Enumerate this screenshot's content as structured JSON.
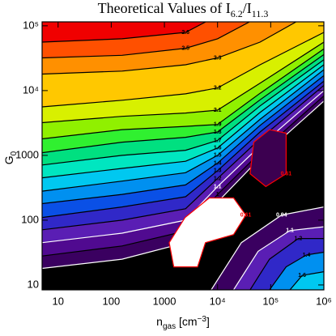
{
  "chart_data": {
    "type": "contour",
    "title": [
      "Theoretical Values of I",
      "6.2",
      "/I",
      "11.3"
    ],
    "xlabel": [
      "n",
      "gas",
      " [cm",
      "−3",
      "]"
    ],
    "ylabel": [
      "G",
      "0"
    ],
    "log_x": true,
    "log_y": true,
    "xlim": [
      5,
      1000000
    ],
    "ylim": [
      8.4,
      115000
    ],
    "xticks": [
      10,
      100,
      1000,
      {
        "value": 10000,
        "label": "10⁴"
      },
      {
        "value": 100000,
        "label": "10⁵"
      },
      {
        "value": 1000000,
        "label": "10⁶"
      }
    ],
    "yticks": [
      10,
      100,
      1000,
      {
        "value": 10000,
        "label": "10⁴"
      },
      {
        "value": 100000,
        "label": "10⁵"
      }
    ],
    "contours": [
      {
        "level": 0.94,
        "side": "upper-left",
        "fill": "#3a0060",
        "line_color": "#ffffff",
        "x": [
          5,
          160,
          2500,
          10000,
          63000,
          1000000
        ],
        "y": [
          18,
          25,
          45,
          190,
          910,
          6900
        ]
      },
      {
        "level": 1.0,
        "side": "upper-left",
        "fill": "#500a90",
        "line_color": "#000000",
        "x": [
          5,
          160,
          2500,
          10000,
          63000,
          1000000
        ],
        "y": [
          28,
          40,
          68,
          250,
          1100,
          8300
        ]
      },
      {
        "level": 1.1,
        "side": "upper-left",
        "fill": "#5a1eb4",
        "line_color": "#ffffff",
        "x": [
          5,
          160,
          2500,
          10000,
          63000,
          1000000
        ],
        "y": [
          45,
          63,
          100,
          330,
          1400,
          10000
        ]
      },
      {
        "level": 1.2,
        "side": "upper-left",
        "fill": "#3028c8",
        "line_color": "#000000",
        "x": [
          5,
          160,
          2500,
          10000,
          63000,
          1000000
        ],
        "y": [
          71,
          100,
          150,
          440,
          1800,
          12000
        ]
      },
      {
        "level": 1.3,
        "side": "upper-left",
        "fill": "#0a50e6",
        "line_color": "#000000",
        "x": [
          5,
          160,
          2500,
          10000,
          63000,
          1000000
        ],
        "y": [
          110,
          160,
          230,
          580,
          2300,
          14000
        ]
      },
      {
        "level": 1.4,
        "side": "upper-left",
        "fill": "#0090f0",
        "line_color": "#000000",
        "x": [
          5,
          160,
          2500,
          10000,
          63000,
          1000000
        ],
        "y": [
          180,
          250,
          350,
          760,
          2900,
          17000
        ]
      },
      {
        "level": 1.5,
        "side": "upper-left",
        "fill": "#00c8f0",
        "line_color": "#000000",
        "x": [
          5,
          160,
          2500,
          10000,
          63000,
          1000000
        ],
        "y": [
          280,
          400,
          540,
          1000,
          3600,
          21000
        ]
      },
      {
        "level": 1.6,
        "side": "upper-left",
        "fill": "#00e6c0",
        "line_color": "#000000",
        "x": [
          5,
          160,
          2500,
          10000,
          63000,
          1000000
        ],
        "y": [
          450,
          630,
          810,
          1300,
          4600,
          25000
        ]
      },
      {
        "level": 1.7,
        "side": "upper-left",
        "fill": "#00e080",
        "line_color": "#000000",
        "x": [
          5,
          160,
          2500,
          10000,
          63000,
          1000000
        ],
        "y": [
          710,
          1000,
          1200,
          1700,
          5800,
          30000
        ]
      },
      {
        "level": 1.8,
        "side": "upper-left",
        "fill": "#30f030",
        "line_color": "#000000",
        "x": [
          5,
          160,
          2500,
          10000,
          63000,
          1000000
        ],
        "y": [
          1100,
          1600,
          1900,
          2300,
          7200,
          36000
        ]
      },
      {
        "level": 1.9,
        "side": "upper-left",
        "fill": "#90f000",
        "line_color": "#000000",
        "x": [
          5,
          160,
          2500,
          10000,
          63000,
          1000000
        ],
        "y": [
          1800,
          2500,
          2800,
          3000,
          9100,
          44000
        ]
      },
      {
        "level": 2.1,
        "side": "upper-left",
        "fill": "#d8f000",
        "line_color": "#000000",
        "x": [
          5,
          160,
          2500,
          10000,
          63000,
          1000000
        ],
        "y": [
          3200,
          4000,
          4500,
          5000,
          13000,
          56000
        ]
      },
      {
        "level": 2.2,
        "side": "upper-left",
        "fill": "#ffc800",
        "line_color": "#000000",
        "x": [
          5,
          160,
          2500,
          10000,
          63000,
          1000000
        ],
        "y": [
          5600,
          7100,
          8900,
          11000,
          25000,
          79000
        ]
      },
      {
        "level": 2.3,
        "side": "upper-left",
        "fill": "#ff9000",
        "line_color": "#000000",
        "x": [
          5,
          160,
          2500,
          10000,
          63000,
          300000
        ],
        "y": [
          18000,
          20000,
          25000,
          32000,
          56000,
          115000
        ]
      },
      {
        "level": 2.5,
        "side": "upper-left",
        "fill": "#ff5000",
        "line_color": "#000000",
        "x": [
          5,
          160,
          2500,
          10000,
          40000
        ],
        "y": [
          32000,
          35000,
          45000,
          63000,
          115000
        ]
      },
      {
        "level": 2.6,
        "side": "upper-left",
        "fill": "#f00000",
        "line_color": "#000000",
        "x": [
          5,
          160,
          2500,
          6000
        ],
        "y": [
          56000,
          63000,
          79000,
          115000
        ]
      },
      {
        "level": 0.94,
        "side": "lower-right",
        "fill": "#3a0060",
        "line_color": "#ffffff",
        "x": [
          7600,
          28000,
          160000,
          1000000
        ],
        "y": [
          8.4,
          45,
          120,
          160
        ]
      },
      {
        "level": 1.1,
        "side": "lower-right",
        "fill": "#5a1eb4",
        "line_color": "#ffffff",
        "x": [
          20000,
          58000,
          230000,
          1000000
        ],
        "y": [
          8.4,
          33,
          69,
          79
        ]
      },
      {
        "level": 1.2,
        "side": "lower-right",
        "fill": "#3028c8",
        "line_color": "#000000",
        "x": [
          41000,
          95000,
          330000,
          1000000
        ],
        "y": [
          8.4,
          25,
          52,
          52
        ]
      },
      {
        "level": 1.4,
        "side": "lower-right",
        "fill": "#0090f0",
        "line_color": "#000000",
        "x": [
          95000,
          195000,
          470000,
          1000000
        ],
        "y": [
          8.4,
          19,
          29,
          32
        ]
      },
      {
        "level": 1.6,
        "side": "lower-right",
        "fill": "#00c8f0",
        "line_color": "#000000",
        "x": [
          230000,
          390000,
          1000000
        ],
        "y": [
          8.4,
          14,
          16
        ]
      },
      {
        "level": 0.61,
        "side": "closed",
        "fill": "#ffffff",
        "line_color": "#ff0000",
        "x": [
          1230,
          2450,
          7000,
          20000,
          34000,
          20000,
          5900,
          4200,
          1500
        ],
        "y": [
          45,
          110,
          220,
          220,
          120,
          60,
          45,
          19,
          19
        ]
      },
      {
        "level": 0.61,
        "side": "closed",
        "fill": "#3c0050",
        "line_color": "#ff0000",
        "x": [
          48000,
          95000,
          195000,
          195000,
          81000,
          41000
        ],
        "y": [
          1600,
          2500,
          2200,
          520,
          330,
          520
        ]
      }
    ]
  }
}
